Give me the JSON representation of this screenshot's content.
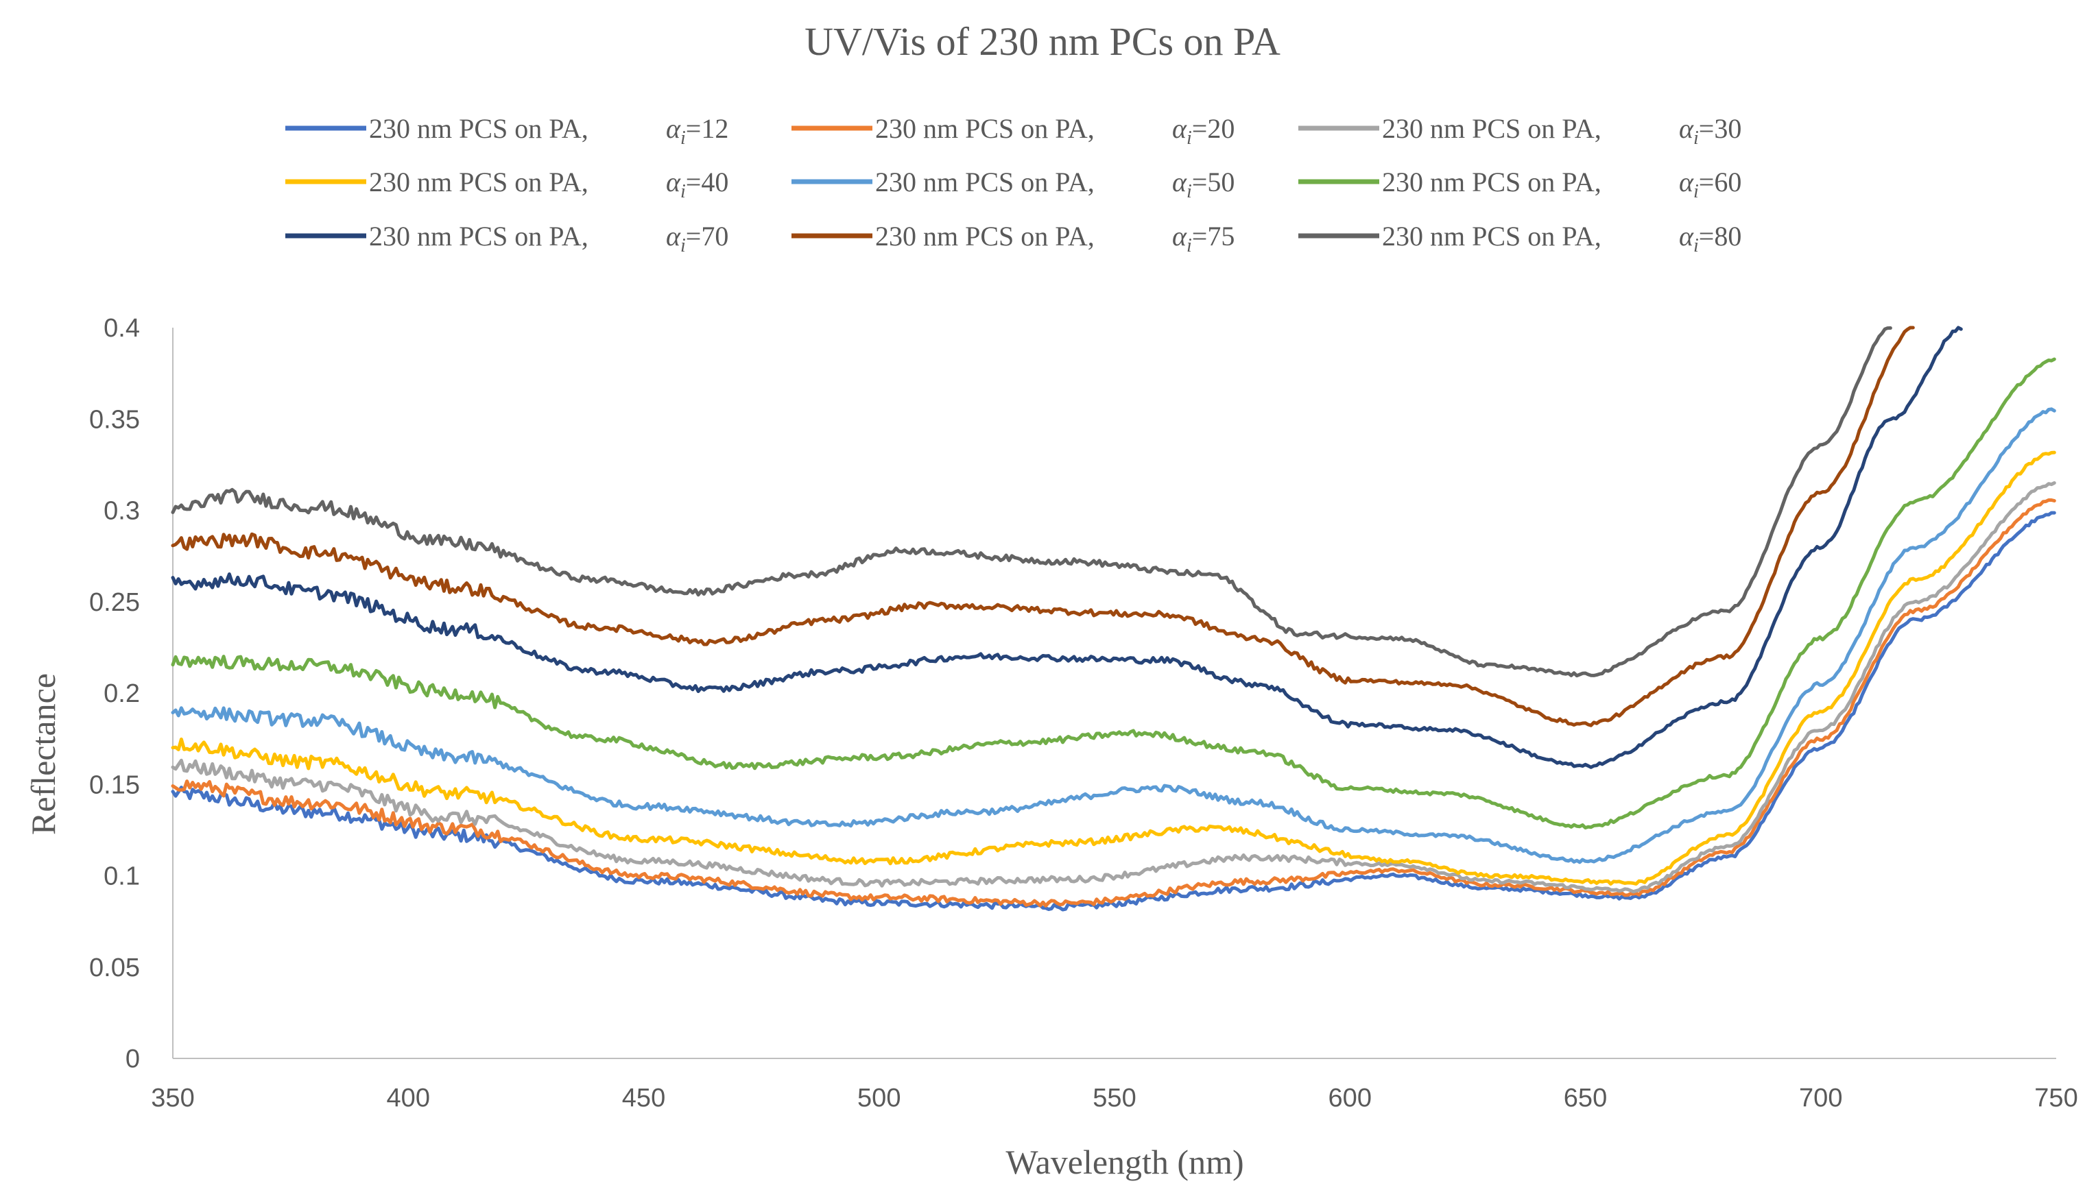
{
  "chart_data": {
    "type": "line",
    "title": "UV/Vis of 230 nm PCs on PA",
    "xlabel": "Wavelength (nm)",
    "ylabel": "Reflectance",
    "xlim": [
      350,
      750
    ],
    "ylim": [
      0,
      0.4
    ],
    "xticks": [
      350,
      400,
      450,
      500,
      550,
      600,
      650,
      700,
      750
    ],
    "yticks": [
      0,
      0.05,
      0.1,
      0.15,
      0.2,
      0.25,
      0.3,
      0.35,
      0.4
    ],
    "ytick_labels": [
      "0",
      "0.05",
      "0.1",
      "0.15",
      "0.2",
      "0.25",
      "0.3",
      "0.35",
      "0.4"
    ],
    "grid": false,
    "legend_position": "top",
    "series": [
      {
        "name": "230 nm PCS on PA,",
        "alpha_symbol": "α",
        "alpha_sub": "i",
        "alpha_value": "=12",
        "color": "#4472C4",
        "x": [
          350,
          380,
          410,
          450,
          500,
          540,
          580,
          610,
          630,
          660,
          680,
          700,
          720,
          750
        ],
        "y": [
          0.145,
          0.135,
          0.122,
          0.097,
          0.085,
          0.083,
          0.093,
          0.1,
          0.093,
          0.088,
          0.11,
          0.17,
          0.24,
          0.298
        ]
      },
      {
        "name": "230 nm PCS on PA,",
        "alpha_symbol": "α",
        "alpha_sub": "i",
        "alpha_value": "=20",
        "color": "#ED7D31",
        "x": [
          350,
          380,
          410,
          450,
          500,
          540,
          580,
          610,
          630,
          660,
          680,
          700,
          720,
          750
        ],
        "y": [
          0.15,
          0.14,
          0.126,
          0.1,
          0.088,
          0.085,
          0.097,
          0.103,
          0.095,
          0.09,
          0.113,
          0.175,
          0.245,
          0.306
        ]
      },
      {
        "name": "230 nm PCS on PA,",
        "alpha_symbol": "α",
        "alpha_sub": "i",
        "alpha_value": "=30",
        "color": "#A5A5A5",
        "x": [
          350,
          380,
          410,
          450,
          500,
          540,
          580,
          610,
          630,
          660,
          680,
          700,
          720,
          750
        ],
        "y": [
          0.16,
          0.15,
          0.132,
          0.108,
          0.096,
          0.098,
          0.11,
          0.106,
          0.097,
          0.092,
          0.116,
          0.18,
          0.25,
          0.315
        ]
      },
      {
        "name": "230 nm PCS on PA,",
        "alpha_symbol": "α",
        "alpha_sub": "i",
        "alpha_value": "=40",
        "color": "#FFC000",
        "x": [
          350,
          380,
          410,
          450,
          500,
          540,
          570,
          610,
          630,
          660,
          680,
          700,
          720,
          750
        ],
        "y": [
          0.172,
          0.162,
          0.145,
          0.12,
          0.108,
          0.118,
          0.126,
          0.108,
          0.1,
          0.096,
          0.122,
          0.19,
          0.262,
          0.332
        ]
      },
      {
        "name": "230 nm PCS on PA,",
        "alpha_symbol": "α",
        "alpha_sub": "i",
        "alpha_value": "=50",
        "color": "#5B9BD5",
        "x": [
          350,
          380,
          410,
          450,
          490,
          520,
          560,
          580,
          600,
          620,
          650,
          680,
          700,
          720,
          750
        ],
        "y": [
          0.19,
          0.185,
          0.165,
          0.138,
          0.128,
          0.135,
          0.148,
          0.14,
          0.125,
          0.122,
          0.108,
          0.135,
          0.205,
          0.28,
          0.355
        ]
      },
      {
        "name": "230 nm PCS on PA,",
        "alpha_symbol": "α",
        "alpha_sub": "i",
        "alpha_value": "=60",
        "color": "#70AD47",
        "x": [
          350,
          380,
          410,
          440,
          470,
          500,
          530,
          555,
          580,
          600,
          620,
          650,
          680,
          700,
          720,
          750
        ],
        "y": [
          0.218,
          0.215,
          0.2,
          0.175,
          0.16,
          0.165,
          0.173,
          0.178,
          0.168,
          0.148,
          0.145,
          0.127,
          0.155,
          0.23,
          0.305,
          0.382
        ]
      },
      {
        "name": "230 nm PCS on PA,",
        "alpha_symbol": "α",
        "alpha_sub": "i",
        "alpha_value": "=70",
        "color": "#264478",
        "x": [
          350,
          365,
          380,
          410,
          440,
          465,
          490,
          520,
          560,
          580,
          600,
          620,
          650,
          680,
          700,
          715,
          730
        ],
        "y": [
          0.26,
          0.262,
          0.255,
          0.235,
          0.212,
          0.202,
          0.212,
          0.22,
          0.218,
          0.205,
          0.183,
          0.18,
          0.16,
          0.195,
          0.28,
          0.35,
          0.4
        ]
      },
      {
        "name": "230 nm PCS on PA,",
        "alpha_symbol": "α",
        "alpha_sub": "i",
        "alpha_value": "=75",
        "color": "#9E480E",
        "x": [
          350,
          365,
          380,
          410,
          440,
          465,
          490,
          510,
          560,
          580,
          600,
          620,
          650,
          680,
          700,
          720
        ],
        "y": [
          0.282,
          0.284,
          0.277,
          0.258,
          0.236,
          0.228,
          0.24,
          0.248,
          0.243,
          0.23,
          0.207,
          0.205,
          0.183,
          0.22,
          0.31,
          0.4
        ]
      },
      {
        "name": "230 nm PCS on PA,",
        "alpha_symbol": "α",
        "alpha_sub": "i",
        "alpha_value": "=80",
        "color": "#636363",
        "x": [
          350,
          362,
          380,
          410,
          440,
          460,
          485,
          505,
          540,
          570,
          590,
          610,
          630,
          650,
          680,
          700,
          715
        ],
        "y": [
          0.3,
          0.308,
          0.302,
          0.282,
          0.262,
          0.255,
          0.265,
          0.278,
          0.272,
          0.265,
          0.232,
          0.23,
          0.215,
          0.21,
          0.245,
          0.335,
          0.4
        ]
      }
    ]
  }
}
